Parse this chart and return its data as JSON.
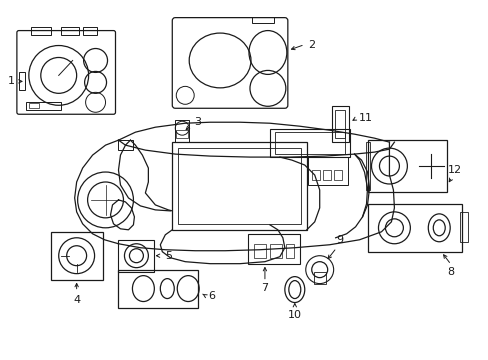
{
  "background_color": "#ffffff",
  "line_color": "#1a1a1a",
  "text_color": "#1a1a1a",
  "fig_width": 4.89,
  "fig_height": 3.6,
  "dpi": 100
}
